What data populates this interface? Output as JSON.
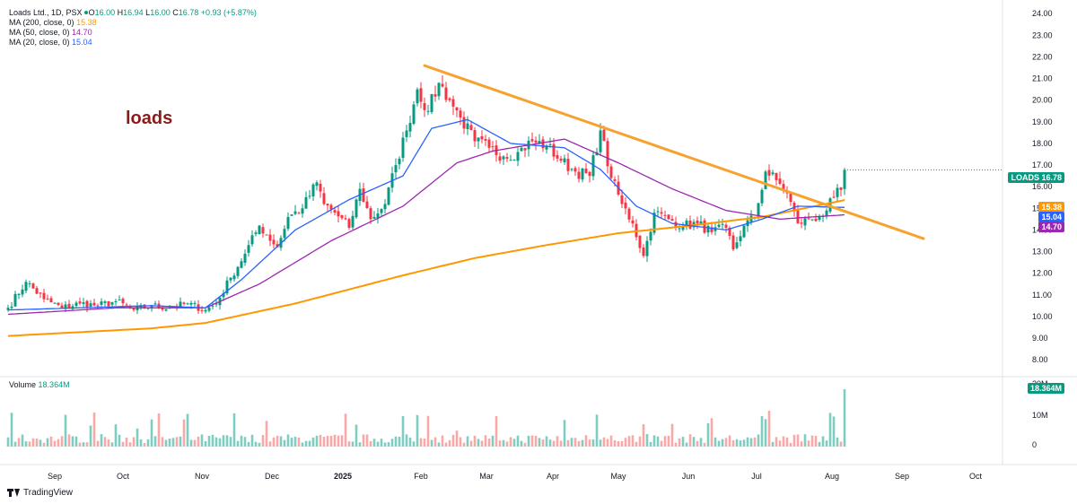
{
  "header": {
    "symbol": "Loads Ltd., 1D, PSX",
    "o_label": "O",
    "o": "16.00",
    "h_label": "H",
    "h": "16.94",
    "l_label": "L",
    "l": "16.00",
    "c_label": "C",
    "c": "16.78",
    "change": "+0.93 (+5.87%)"
  },
  "ma_legend": [
    {
      "label": "MA (200, close, 0)",
      "value": "15.38",
      "color": "#ff9800"
    },
    {
      "label": "MA (50, close, 0)",
      "value": "14.70",
      "color": "#9c27b0"
    },
    {
      "label": "MA (20, close, 0)",
      "value": "15.04",
      "color": "#2962ff"
    }
  ],
  "annotation": "loads",
  "price_tags": {
    "symbol": "LOADS",
    "last": "16.78",
    "ma200": "15.38",
    "ma20": "15.04",
    "ma50": "14.70"
  },
  "volume": {
    "label": "Volume",
    "value": "18.364M",
    "tag": "18.364M"
  },
  "footer": {
    "brand": "TradingView"
  },
  "colors": {
    "up": "#089981",
    "down": "#f23645",
    "ma200": "#ff9800",
    "ma50": "#9c27b0",
    "ma20": "#2962ff",
    "trendline": "#f7a22f",
    "vol_up": "#7fcdc2",
    "vol_down": "#f7a9a7"
  },
  "chart_data": {
    "type": "candlestick",
    "title": "Loads Ltd., 1D, PSX",
    "x_ticks": [
      "Sep",
      "Oct",
      "Nov",
      "Dec",
      "2025",
      "Feb",
      "Mar",
      "Apr",
      "May",
      "Jun",
      "Jul",
      "Aug",
      "Sep",
      "Oct"
    ],
    "y_ticks": [
      "8.00",
      "9.00",
      "10.00",
      "11.00",
      "12.00",
      "13.00",
      "14.00",
      "15.00",
      "16.00",
      "17.00",
      "18.00",
      "19.00",
      "20.00",
      "21.00",
      "22.00",
      "23.00",
      "24.00"
    ],
    "ylim": [
      7.3,
      24.3
    ],
    "volume_ticks": [
      "0",
      "10M",
      "20M"
    ],
    "last_close": 16.78,
    "close_anchors": [
      [
        0,
        10.4
      ],
      [
        5,
        11.6
      ],
      [
        10,
        10.8
      ],
      [
        15,
        10.4
      ],
      [
        20,
        10.6
      ],
      [
        25,
        10.5
      ],
      [
        30,
        10.7
      ],
      [
        35,
        10.3
      ],
      [
        40,
        10.5
      ],
      [
        45,
        10.4
      ],
      [
        50,
        10.6
      ],
      [
        55,
        10.3
      ],
      [
        58,
        10.6
      ],
      [
        62,
        11.8
      ],
      [
        66,
        12.9
      ],
      [
        70,
        14.2
      ],
      [
        75,
        13.2
      ],
      [
        78,
        14.6
      ],
      [
        82,
        15.0
      ],
      [
        86,
        16.2
      ],
      [
        88,
        15.2
      ],
      [
        91,
        14.8
      ],
      [
        95,
        14.1
      ],
      [
        98,
        15.9
      ],
      [
        101,
        14.5
      ],
      [
        105,
        15.2
      ],
      [
        108,
        17.0
      ],
      [
        111,
        18.6
      ],
      [
        114,
        20.5
      ],
      [
        117,
        19.5
      ],
      [
        120,
        20.8
      ],
      [
        123,
        20.0
      ],
      [
        126,
        19.2
      ],
      [
        130,
        18.1
      ],
      [
        134,
        17.8
      ],
      [
        138,
        17.4
      ],
      [
        142,
        17.6
      ],
      [
        146,
        18.1
      ],
      [
        150,
        17.9
      ],
      [
        154,
        17.2
      ],
      [
        158,
        16.7
      ],
      [
        162,
        16.5
      ],
      [
        165,
        18.6
      ],
      [
        168,
        16.4
      ],
      [
        171,
        15.2
      ],
      [
        174,
        14.3
      ],
      [
        177,
        12.8
      ],
      [
        180,
        14.8
      ],
      [
        184,
        14.5
      ],
      [
        188,
        14.2
      ],
      [
        192,
        14.3
      ],
      [
        196,
        13.9
      ],
      [
        200,
        14.1
      ],
      [
        202,
        13.1
      ],
      [
        205,
        14.2
      ],
      [
        208,
        14.6
      ],
      [
        211,
        16.7
      ],
      [
        214,
        16.3
      ],
      [
        217,
        15.7
      ],
      [
        220,
        14.3
      ],
      [
        223,
        14.5
      ],
      [
        226,
        14.6
      ],
      [
        228,
        14.9
      ],
      [
        230,
        15.5
      ],
      [
        232,
        15.85
      ],
      [
        233,
        16.78
      ]
    ],
    "ma200_anchors": [
      [
        0,
        9.1
      ],
      [
        40,
        9.45
      ],
      [
        55,
        9.7
      ],
      [
        80,
        10.6
      ],
      [
        110,
        11.9
      ],
      [
        130,
        12.7
      ],
      [
        150,
        13.3
      ],
      [
        170,
        13.85
      ],
      [
        190,
        14.2
      ],
      [
        210,
        14.6
      ],
      [
        233,
        15.38
      ]
    ],
    "ma50_anchors": [
      [
        0,
        10.1
      ],
      [
        30,
        10.4
      ],
      [
        55,
        10.4
      ],
      [
        70,
        11.5
      ],
      [
        90,
        13.5
      ],
      [
        110,
        15.1
      ],
      [
        125,
        17.1
      ],
      [
        135,
        17.65
      ],
      [
        155,
        18.2
      ],
      [
        170,
        17.1
      ],
      [
        185,
        15.9
      ],
      [
        200,
        14.9
      ],
      [
        215,
        14.5
      ],
      [
        233,
        14.7
      ]
    ],
    "ma20_anchors": [
      [
        0,
        10.3
      ],
      [
        40,
        10.5
      ],
      [
        55,
        10.4
      ],
      [
        65,
        11.7
      ],
      [
        80,
        14.0
      ],
      [
        95,
        15.4
      ],
      [
        110,
        16.5
      ],
      [
        118,
        18.7
      ],
      [
        128,
        19.1
      ],
      [
        140,
        18.0
      ],
      [
        155,
        17.8
      ],
      [
        165,
        16.8
      ],
      [
        175,
        15.1
      ],
      [
        185,
        14.3
      ],
      [
        200,
        14.0
      ],
      [
        210,
        14.5
      ],
      [
        220,
        15.1
      ],
      [
        233,
        15.04
      ]
    ],
    "trendline": [
      [
        116,
        21.6
      ],
      [
        255,
        13.6
      ]
    ]
  }
}
